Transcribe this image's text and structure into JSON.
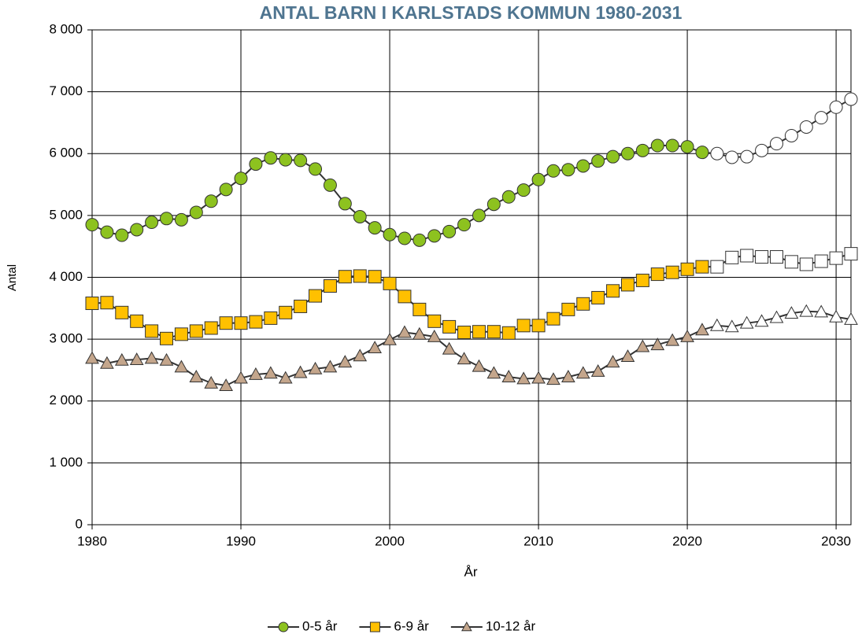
{
  "chart_data": {
    "type": "line",
    "title": "ANTAL BARN I KARLSTADS KOMMUN 1980-2031",
    "x_label": "År",
    "y_label": "Antal",
    "x": [
      1980,
      1981,
      1982,
      1983,
      1984,
      1985,
      1986,
      1987,
      1988,
      1989,
      1990,
      1991,
      1992,
      1993,
      1994,
      1995,
      1996,
      1997,
      1998,
      1999,
      2000,
      2001,
      2002,
      2003,
      2004,
      2005,
      2006,
      2007,
      2008,
      2009,
      2010,
      2011,
      2012,
      2013,
      2014,
      2015,
      2016,
      2017,
      2018,
      2019,
      2020,
      2021,
      2022,
      2023,
      2024,
      2025,
      2026,
      2027,
      2028,
      2029,
      2030,
      2031
    ],
    "series": [
      {
        "name": "0-5 år",
        "color": "#8dc21f",
        "marker": "circle",
        "values": [
          4850,
          4730,
          4680,
          4770,
          4890,
          4950,
          4930,
          5050,
          5230,
          5420,
          5600,
          5830,
          5930,
          5900,
          5890,
          5750,
          5490,
          5190,
          4980,
          4800,
          4690,
          4630,
          4600,
          4670,
          4740,
          4850,
          5000,
          5180,
          5300,
          5410,
          5580,
          5720,
          5740,
          5800,
          5880,
          5950,
          6000,
          6050,
          6130,
          6130,
          6110,
          6020,
          6000,
          5940,
          5950,
          6050,
          6160,
          6290,
          6430,
          6580,
          6750,
          6880
        ]
      },
      {
        "name": "6-9 år",
        "color": "#ffc000",
        "marker": "square",
        "values": [
          3580,
          3590,
          3430,
          3290,
          3130,
          3010,
          3080,
          3130,
          3180,
          3260,
          3260,
          3280,
          3340,
          3430,
          3530,
          3700,
          3860,
          4010,
          4020,
          4010,
          3900,
          3690,
          3480,
          3290,
          3200,
          3110,
          3120,
          3120,
          3100,
          3220,
          3220,
          3330,
          3480,
          3570,
          3670,
          3780,
          3880,
          3950,
          4050,
          4080,
          4130,
          4170,
          4170,
          4320,
          4350,
          4330,
          4330,
          4250,
          4210,
          4260,
          4310,
          4380
        ]
      },
      {
        "name": "10-12 år",
        "color": "#c4a68c",
        "marker": "triangle",
        "values": [
          2690,
          2610,
          2660,
          2670,
          2690,
          2660,
          2550,
          2390,
          2290,
          2250,
          2370,
          2430,
          2450,
          2370,
          2460,
          2520,
          2550,
          2630,
          2730,
          2860,
          2990,
          3110,
          3080,
          3040,
          2840,
          2680,
          2560,
          2450,
          2390,
          2360,
          2370,
          2350,
          2390,
          2450,
          2480,
          2630,
          2720,
          2880,
          2910,
          2980,
          3040,
          3150,
          3220,
          3200,
          3260,
          3290,
          3350,
          3420,
          3450,
          3440,
          3360,
          3320
        ]
      }
    ],
    "forecast_start_x": 2022,
    "forecast_color": "#ffffff",
    "xlim": [
      1980,
      2031
    ],
    "xticks": [
      1980,
      1990,
      2000,
      2010,
      2020,
      2030
    ],
    "ylim": [
      0,
      8000
    ],
    "yticks": [
      0,
      {
        "value": 1000,
        "label": "1 000"
      },
      {
        "value": 2000,
        "label": "2 000"
      },
      {
        "value": 3000,
        "label": "3 000"
      },
      {
        "value": 4000,
        "label": "4 000"
      },
      {
        "value": 5000,
        "label": "5 000"
      },
      {
        "value": 6000,
        "label": "6 000"
      },
      {
        "value": 7000,
        "label": "7 000"
      },
      {
        "value": 8000,
        "label": "8 000"
      }
    ],
    "grid": true,
    "legend": "bottom"
  }
}
